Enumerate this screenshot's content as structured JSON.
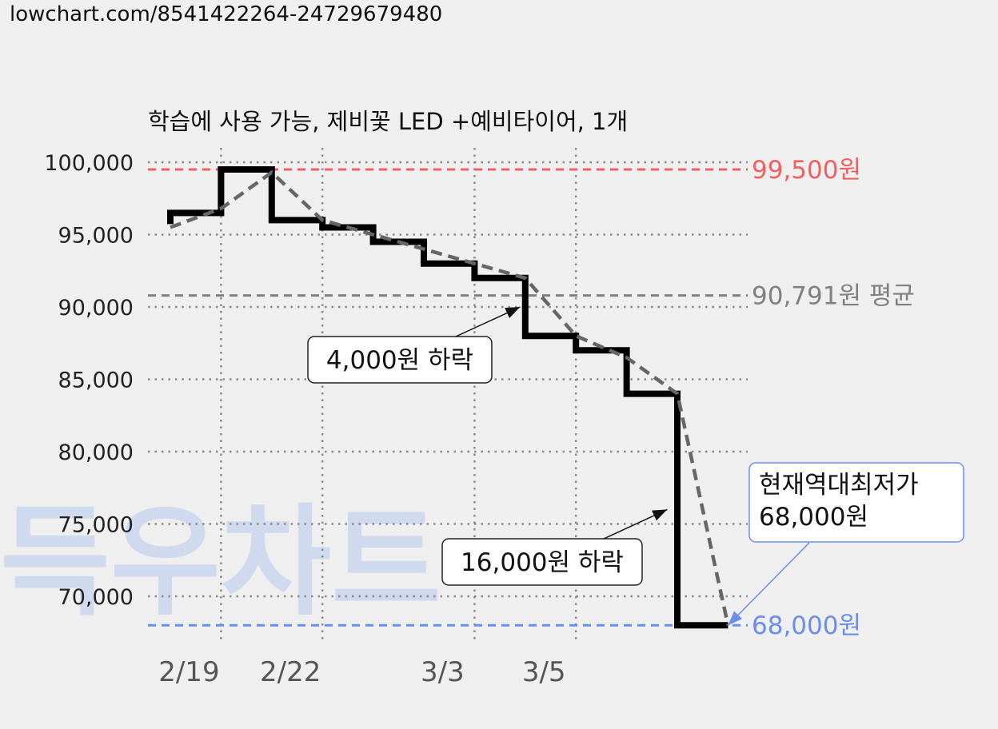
{
  "url": "lowchart.com/8541422264-24729679480",
  "watermark": "득우차트",
  "chart_data": {
    "type": "line",
    "title": "학습에 사용 가능, 제비꽃 LED +예비타이어, 1개",
    "xlabel": "",
    "ylabel": "",
    "ylim": [
      67500,
      100000
    ],
    "yticks": [
      70000,
      75000,
      80000,
      85000,
      90000,
      95000,
      100000
    ],
    "ytick_labels": [
      "70,000",
      "75,000",
      "80,000",
      "85,000",
      "90,000",
      "95,000",
      "100,000"
    ],
    "x_index_range": [
      0,
      11
    ],
    "x_ticks": [
      {
        "index": 1,
        "label": "2/19"
      },
      {
        "index": 3,
        "label": "2/22"
      },
      {
        "index": 6,
        "label": "3/3"
      },
      {
        "index": 8,
        "label": "3/5"
      }
    ],
    "grid": true,
    "series": [
      {
        "style": "step",
        "color": "#000000",
        "points": [
          {
            "x": 0,
            "y": 96500
          },
          {
            "x": 1,
            "y": 99500
          },
          {
            "x": 2,
            "y": 96000
          },
          {
            "x": 3,
            "y": 95500
          },
          {
            "x": 4,
            "y": 94500
          },
          {
            "x": 5,
            "y": 93000
          },
          {
            "x": 6,
            "y": 92000
          },
          {
            "x": 7,
            "y": 88000
          },
          {
            "x": 8,
            "y": 87000
          },
          {
            "x": 9,
            "y": 84000
          },
          {
            "x": 10,
            "y": 68000
          },
          {
            "x": 11,
            "y": 68000
          }
        ]
      },
      {
        "style": "dashed",
        "color": "#666666",
        "points": [
          {
            "x": 0,
            "y": 95500
          },
          {
            "x": 1,
            "y": 96800
          },
          {
            "x": 2,
            "y": 99300
          },
          {
            "x": 3,
            "y": 96000
          },
          {
            "x": 4,
            "y": 95000
          },
          {
            "x": 5,
            "y": 94000
          },
          {
            "x": 6,
            "y": 93000
          },
          {
            "x": 7,
            "y": 92000
          },
          {
            "x": 8,
            "y": 88000
          },
          {
            "x": 9,
            "y": 86500
          },
          {
            "x": 10,
            "y": 84000
          },
          {
            "x": 11,
            "y": 68000
          }
        ]
      }
    ],
    "reference_lines": [
      {
        "value": 99500,
        "label": "99,500원",
        "color": "#f06060"
      },
      {
        "value": 90791,
        "label": "90,791원 평균",
        "color": "#808080"
      },
      {
        "value": 68000,
        "label": "68,000원",
        "color": "#6b8ee6"
      }
    ],
    "annotations": [
      {
        "text": "4,000원 하락",
        "arrow_to": {
          "x": 6.9,
          "y": 90000
        }
      },
      {
        "text": "16,000원 하락",
        "arrow_to": {
          "x": 9.8,
          "y": 76000
        }
      },
      {
        "text": "현재역대최저가\n68,000원",
        "color": "#6b8ee6",
        "arrow_to": {
          "x": 11,
          "y": 68000
        }
      }
    ]
  }
}
